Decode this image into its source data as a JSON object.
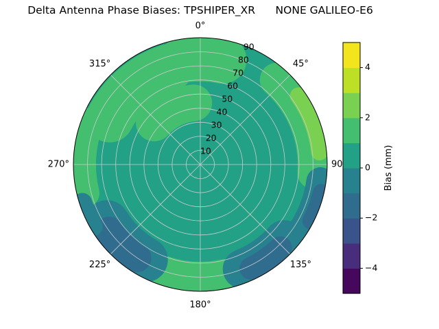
{
  "chart_data": {
    "type": "heatmap",
    "projection": "polar",
    "title": "Delta Antenna Phase Biases: TPSHIPER_XR      NONE GALILEO-E6",
    "theta_direction": "clockwise",
    "theta_zero_location": "top",
    "theta_ticks": [
      {
        "angle_deg": 0,
        "label": "0°"
      },
      {
        "angle_deg": 45,
        "label": "45°"
      },
      {
        "angle_deg": 90,
        "label": "90°"
      },
      {
        "angle_deg": 135,
        "label": "135°"
      },
      {
        "angle_deg": 180,
        "label": "180°"
      },
      {
        "angle_deg": 225,
        "label": "225°"
      },
      {
        "angle_deg": 270,
        "label": "270°"
      },
      {
        "angle_deg": 315,
        "label": "315°"
      }
    ],
    "r_ticks": [
      {
        "value": 10,
        "label": "10"
      },
      {
        "value": 20,
        "label": "20"
      },
      {
        "value": 30,
        "label": "30"
      },
      {
        "value": 40,
        "label": "40"
      },
      {
        "value": 50,
        "label": "50"
      },
      {
        "value": 60,
        "label": "60"
      },
      {
        "value": 70,
        "label": "70"
      },
      {
        "value": 80,
        "label": "80"
      },
      {
        "value": 90,
        "label": "90"
      }
    ],
    "r_axis_angle_deg": 22.5,
    "r_max": 90,
    "grid_color": "#cccccc",
    "colorbar": {
      "label": "Bias (mm)",
      "min": -5,
      "max": 5,
      "ticks": [
        {
          "value": 4,
          "label": "4"
        },
        {
          "value": 2,
          "label": "2"
        },
        {
          "value": 0,
          "label": "0"
        },
        {
          "value": -2,
          "label": "−2"
        },
        {
          "value": -4,
          "label": "−4"
        }
      ],
      "band_ranges": [
        "-5 to -4",
        "-4 to -3",
        "-3 to -2",
        "-2 to -1",
        "-1 to 0",
        "0 to 1",
        "1 to 2",
        "2 to 3",
        "3 to 4",
        "4 to 5"
      ],
      "band_colors": [
        "#46085c",
        "#472d7b",
        "#3a538b",
        "#2f6c8e",
        "#27818e",
        "#22a186",
        "#44bf70",
        "#7ad151",
        "#bddf26",
        "#f2e51e"
      ]
    },
    "regions": [
      {
        "name": "base",
        "bias_mm": "0 to 1",
        "band_index": 5,
        "full_disk": true
      },
      {
        "name": "top-green",
        "bias_mm": "1 to 2",
        "band_index": 6,
        "theta_deg": [
          352,
          372
        ],
        "zenith_mid": 76,
        "zenith_halfwidth": 17
      },
      {
        "name": "upper-left-green-outer",
        "bias_mm": "1 to 2",
        "band_index": 6,
        "theta_deg": [
          297,
          342
        ],
        "zenith_mid": 72,
        "zenith_halfwidth": 17
      },
      {
        "name": "upper-left-green-inner",
        "bias_mm": "1 to 2",
        "band_index": 6,
        "theta_deg": [
          312,
          354
        ],
        "zenith_mid": 44,
        "zenith_halfwidth": 13
      },
      {
        "name": "right-green",
        "bias_mm": "1 to 2",
        "band_index": 6,
        "theta_deg": [
          42,
          94
        ],
        "zenith_mid": 81,
        "zenith_halfwidth": 12
      },
      {
        "name": "right-light-green-core",
        "bias_mm": "2 to 3",
        "band_index": 7,
        "theta_deg": [
          55,
          84
        ],
        "zenith_mid": 85,
        "zenith_halfwidth": 6
      },
      {
        "name": "left-green",
        "bias_mm": "1 to 2",
        "band_index": 6,
        "theta_deg": [
          256,
          291
        ],
        "zenith_mid": 84,
        "zenith_halfwidth": 10
      },
      {
        "name": "bottom-green",
        "bias_mm": "1 to 2",
        "band_index": 6,
        "theta_deg": [
          168,
          205
        ],
        "zenith_mid": 82,
        "zenith_halfwidth": 13
      },
      {
        "name": "bottom-left-blue-outer",
        "bias_mm": "-1 to 0",
        "band_index": 4,
        "theta_deg": [
          210,
          238
        ],
        "zenith_mid": 78,
        "zenith_halfwidth": 16
      },
      {
        "name": "bottom-left-blue-core",
        "bias_mm": "-2 to -1",
        "band_index": 3,
        "theta_deg": [
          214,
          234
        ],
        "zenith_mid": 80,
        "zenith_halfwidth": 10
      },
      {
        "name": "bottom-right-blue-outer",
        "bias_mm": "-1 to 0",
        "band_index": 4,
        "theta_deg": [
          132,
          158
        ],
        "zenith_mid": 80,
        "zenith_halfwidth": 14
      },
      {
        "name": "bottom-right-blue-core",
        "bias_mm": "-2 to -1",
        "band_index": 3,
        "theta_deg": [
          136,
          154
        ],
        "zenith_mid": 82,
        "zenith_halfwidth": 8
      },
      {
        "name": "right-blue-outer",
        "bias_mm": "-1 to 0",
        "band_index": 4,
        "theta_deg": [
          98,
          122
        ],
        "zenith_mid": 86,
        "zenith_halfwidth": 10
      },
      {
        "name": "right-blue-core",
        "bias_mm": "-2 to -1",
        "band_index": 3,
        "theta_deg": [
          103,
          117
        ],
        "zenith_mid": 88,
        "zenith_halfwidth": 6
      },
      {
        "name": "left-blue",
        "bias_mm": "-1 to 0",
        "band_index": 4,
        "theta_deg": [
          240,
          252
        ],
        "zenith_mid": 88,
        "zenith_halfwidth": 7
      }
    ]
  }
}
